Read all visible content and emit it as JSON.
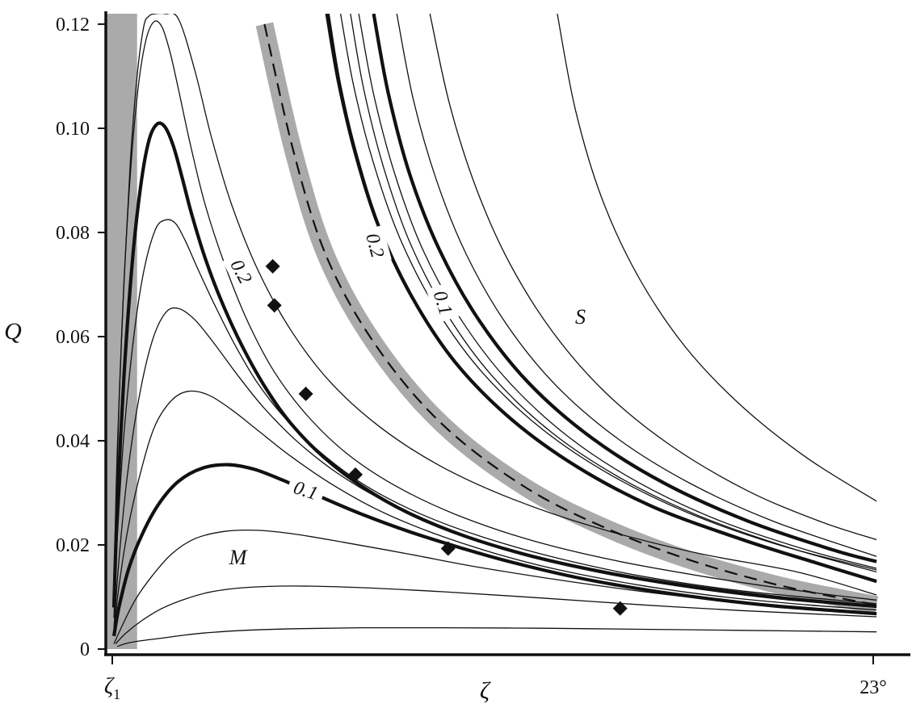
{
  "chart_data": {
    "type": "line",
    "xlabel": "ζ",
    "ylabel": "Q",
    "x_tick_labels": [
      {
        "x": 0,
        "main": "ζ",
        "sub": "1"
      },
      {
        "x": 23,
        "main": "23°",
        "sub": ""
      }
    ],
    "xlim": [
      0,
      23.5
    ],
    "ylim": [
      0,
      0.122
    ],
    "yticks": [
      0,
      0.02,
      0.04,
      0.06,
      0.08,
      0.1,
      0.12
    ],
    "ytick_labels": [
      "0",
      "0.02",
      "0.04",
      "0.06",
      "0.08",
      "0.10",
      "0.12"
    ],
    "grid": false,
    "shaded_band_left": {
      "x_range": [
        -0.2,
        0.75
      ],
      "color": "#aaaaaa"
    },
    "separatrix": {
      "style": "dashed",
      "band_color": "#aaaaaa",
      "x": [
        4.6,
        5.5,
        6.5,
        8,
        10,
        12.5,
        15,
        17.5,
        20,
        22,
        23.1
      ],
      "y": [
        0.12,
        0.095,
        0.075,
        0.058,
        0.043,
        0.031,
        0.023,
        0.017,
        0.0125,
        0.0098,
        0.0085
      ]
    },
    "series": [
      {
        "weight": "thin",
        "x": [
          0.15,
          0.5,
          1.0,
          1.5,
          2.2,
          3.0,
          4.0,
          5.5,
          7.5,
          10,
          13,
          16,
          19,
          23.1
        ],
        "y": [
          0.0005,
          0.0012,
          0.0017,
          0.0021,
          0.0027,
          0.0032,
          0.0036,
          0.0039,
          0.0041,
          0.0041,
          0.004,
          0.0038,
          0.0036,
          0.0033
        ]
      },
      {
        "weight": "thin",
        "x": [
          0.1,
          0.4,
          0.9,
          1.5,
          2.2,
          3.0,
          4.0,
          5.5,
          7.5,
          10,
          13,
          16,
          19,
          23.1
        ],
        "y": [
          0.001,
          0.003,
          0.0055,
          0.0078,
          0.0096,
          0.011,
          0.0118,
          0.0121,
          0.0118,
          0.011,
          0.0098,
          0.0085,
          0.0074,
          0.0062
        ]
      },
      {
        "weight": "thin",
        "x": [
          0.05,
          0.3,
          0.7,
          1.2,
          1.8,
          2.5,
          3.4,
          4.4,
          5.6,
          7,
          9,
          11,
          14,
          17,
          20,
          23.1
        ],
        "y": [
          0.001,
          0.0045,
          0.0095,
          0.014,
          0.0183,
          0.0212,
          0.0226,
          0.0228,
          0.022,
          0.0205,
          0.0182,
          0.0158,
          0.0128,
          0.0103,
          0.0085,
          0.0068
        ]
      },
      {
        "weight": "thick",
        "x": [
          0.05,
          0.2,
          0.5,
          0.9,
          1.4,
          2.0,
          2.7,
          3.5,
          4.3,
          5.2,
          6.2,
          7.5,
          9,
          10.5,
          12,
          14,
          16,
          18,
          20,
          22,
          23.1
        ],
        "y": [
          0.0025,
          0.008,
          0.0155,
          0.022,
          0.0278,
          0.0322,
          0.0347,
          0.0354,
          0.0345,
          0.0323,
          0.0295,
          0.026,
          0.0225,
          0.0195,
          0.0168,
          0.0138,
          0.0115,
          0.0097,
          0.0083,
          0.0073,
          0.0068
        ]
      },
      {
        "weight": "thin",
        "x": [
          0.05,
          0.2,
          0.5,
          0.9,
          1.3,
          1.8,
          2.3,
          2.9,
          3.6,
          4.4,
          5.4,
          6.6,
          8,
          9.6,
          11.5,
          13.5,
          16,
          18.5,
          21,
          23.1
        ],
        "y": [
          0.003,
          0.012,
          0.024,
          0.035,
          0.043,
          0.0478,
          0.0495,
          0.0488,
          0.046,
          0.042,
          0.037,
          0.0318,
          0.0268,
          0.0225,
          0.0185,
          0.0152,
          0.0122,
          0.01,
          0.0085,
          0.0075
        ]
      },
      {
        "weight": "thin",
        "x": [
          0.05,
          0.2,
          0.45,
          0.8,
          1.2,
          1.6,
          2.0,
          2.5,
          3.1,
          3.8,
          4.6,
          5.6,
          6.8,
          8.2,
          10,
          12,
          14.5,
          17,
          20,
          23.1
        ],
        "y": [
          0.004,
          0.017,
          0.033,
          0.048,
          0.059,
          0.0645,
          0.0654,
          0.0632,
          0.0585,
          0.0525,
          0.0462,
          0.0398,
          0.0338,
          0.0285,
          0.0232,
          0.019,
          0.015,
          0.0122,
          0.0097,
          0.008
        ]
      },
      {
        "weight": "thin",
        "x": [
          0.05,
          0.15,
          0.35,
          0.65,
          0.95,
          1.3,
          1.6,
          1.9,
          2.2,
          2.6,
          3.1,
          3.7,
          4.4,
          5.3,
          6.4,
          7.7,
          9.3,
          11.2,
          13.5,
          16,
          19,
          23.1
        ],
        "y": [
          0.006,
          0.021,
          0.041,
          0.06,
          0.0725,
          0.0805,
          0.0824,
          0.0818,
          0.0785,
          0.0728,
          0.066,
          0.0585,
          0.051,
          0.0438,
          0.0372,
          0.0312,
          0.026,
          0.0215,
          0.0174,
          0.014,
          0.0112,
          0.0087
        ]
      },
      {
        "weight": "thick",
        "x": [
          0.05,
          0.15,
          0.35,
          0.6,
          0.85,
          1.1,
          1.35,
          1.6,
          1.85,
          2.1,
          2.4,
          2.8,
          3.3,
          3.9,
          4.6,
          5.4,
          6.4,
          7.6,
          9,
          10.7,
          12.7,
          15,
          17.5,
          20.3,
          23.1
        ],
        "y": [
          0.008,
          0.027,
          0.052,
          0.074,
          0.0885,
          0.0975,
          0.1008,
          0.1002,
          0.0965,
          0.0908,
          0.0835,
          0.0752,
          0.0668,
          0.0585,
          0.0505,
          0.0433,
          0.0368,
          0.031,
          0.026,
          0.0216,
          0.0178,
          0.0146,
          0.012,
          0.0098,
          0.0082
        ]
      },
      {
        "weight": "thin",
        "x": [
          0.05,
          0.12,
          0.28,
          0.5,
          0.75,
          1.0,
          1.25,
          1.5,
          1.75,
          2.0,
          2.35,
          2.8,
          3.4,
          4.1,
          4.9,
          5.9,
          7.1,
          8.6,
          10.4,
          12.6,
          15.2,
          18.2,
          21,
          23.1
        ],
        "y": [
          0.01,
          0.03,
          0.06,
          0.087,
          0.106,
          0.1165,
          0.1204,
          0.1195,
          0.1145,
          0.1075,
          0.0972,
          0.0855,
          0.0738,
          0.0628,
          0.0532,
          0.0448,
          0.0375,
          0.0312,
          0.0258,
          0.021,
          0.017,
          0.0136,
          0.011,
          0.0094
        ]
      },
      {
        "weight": "thin",
        "x": [
          0.05,
          0.15,
          0.35,
          0.55,
          0.75,
          0.95,
          1.1,
          1.3,
          1.6,
          2.0,
          2.5,
          3.0,
          3.6,
          4.4,
          5.4,
          6.6,
          8.1,
          9.9,
          12.1,
          14.7,
          17.7,
          20.7,
          23.1
        ],
        "y": [
          0.012,
          0.038,
          0.07,
          0.094,
          0.11,
          0.1195,
          0.1215,
          0.122,
          0.122,
          0.121,
          0.111,
          0.0982,
          0.0855,
          0.0728,
          0.0612,
          0.0512,
          0.0426,
          0.0352,
          0.0288,
          0.0232,
          0.0184,
          0.0148,
          0.0104
        ]
      },
      {
        "weight": "thin",
        "x": [
          6.45,
          6.8,
          7.3,
          8,
          9,
          10.3,
          12,
          14,
          16.3,
          19,
          21.2,
          23.1
        ],
        "y": [
          0.122,
          0.109,
          0.0955,
          0.0815,
          0.068,
          0.0555,
          0.0445,
          0.0353,
          0.0276,
          0.0213,
          0.0168,
          0.0132
        ]
      },
      {
        "weight": "thin",
        "x": [
          6.55,
          6.9,
          7.4,
          8.1,
          9.1,
          10.4,
          12.1,
          14.1,
          16.4,
          19.1,
          21.3,
          23.1
        ],
        "y": [
          0.122,
          0.1085,
          0.095,
          0.081,
          0.0675,
          0.055,
          0.044,
          0.0348,
          0.0271,
          0.0208,
          0.0164,
          0.0128
        ]
      },
      {
        "weight": "thick",
        "x": [
          6.5,
          6.85,
          7.35,
          8.05,
          9.05,
          10.35,
          12.05,
          14.05,
          16.35,
          19.05,
          21.25,
          23.1
        ],
        "y": [
          0.122,
          0.1088,
          0.0952,
          0.0812,
          0.0677,
          0.0552,
          0.0442,
          0.035,
          0.0273,
          0.021,
          0.0166,
          0.013
        ]
      },
      {
        "weight": "thin",
        "x": [
          6.9,
          7.3,
          7.9,
          8.7,
          9.8,
          11.2,
          13,
          15.1,
          17.5,
          20.2,
          23.1
        ],
        "y": [
          0.122,
          0.108,
          0.0932,
          0.0788,
          0.0652,
          0.053,
          0.0422,
          0.0333,
          0.0259,
          0.0199,
          0.0152
        ]
      },
      {
        "weight": "thin",
        "x": [
          7.2,
          7.6,
          8.2,
          9.0,
          10.1,
          11.5,
          13.3,
          15.4,
          17.8,
          20.5,
          23.1
        ],
        "y": [
          0.122,
          0.1075,
          0.0925,
          0.078,
          0.0645,
          0.0523,
          0.0415,
          0.0327,
          0.0254,
          0.0194,
          0.0148
        ]
      },
      {
        "weight": "thin",
        "x": [
          7.45,
          7.9,
          8.55,
          9.4,
          10.55,
          12,
          13.8,
          15.9,
          18.3,
          21,
          23.1
        ],
        "y": [
          0.122,
          0.1065,
          0.091,
          0.0765,
          0.0632,
          0.0512,
          0.0407,
          0.032,
          0.0248,
          0.019,
          0.0155
        ]
      },
      {
        "weight": "thick",
        "x": [
          7.9,
          8.35,
          9.0,
          9.9,
          11.1,
          12.6,
          14.5,
          16.7,
          19.2,
          21.8,
          23.1
        ],
        "y": [
          0.122,
          0.1065,
          0.091,
          0.0765,
          0.063,
          0.051,
          0.0405,
          0.0318,
          0.0246,
          0.019,
          0.0168
        ]
      },
      {
        "weight": "thin",
        "x": [
          8.6,
          9.1,
          9.8,
          10.7,
          11.9,
          13.4,
          15.3,
          17.5,
          20,
          23.1
        ],
        "y": [
          0.122,
          0.1055,
          0.09,
          0.0758,
          0.0625,
          0.0507,
          0.0403,
          0.0317,
          0.0245,
          0.0178
        ]
      },
      {
        "weight": "thin",
        "x": [
          9.6,
          10.2,
          11.0,
          12.0,
          13.3,
          14.9,
          16.9,
          19.2,
          21.4,
          23.1
        ],
        "y": [
          0.122,
          0.1045,
          0.0885,
          0.0742,
          0.061,
          0.0493,
          0.039,
          0.0304,
          0.0245,
          0.021
        ]
      },
      {
        "weight": "thin",
        "x": [
          13.45,
          14.0,
          14.8,
          15.9,
          17.3,
          19,
          21,
          23.1
        ],
        "y": [
          0.122,
          0.1035,
          0.0865,
          0.0715,
          0.0582,
          0.0468,
          0.0367,
          0.0284
        ]
      }
    ],
    "markers": {
      "shape": "diamond",
      "points": [
        [
          4.85,
          0.0735
        ],
        [
          4.9,
          0.066
        ],
        [
          5.85,
          0.049
        ],
        [
          7.35,
          0.0335
        ],
        [
          10.15,
          0.0193
        ],
        [
          15.35,
          0.0078
        ]
      ]
    },
    "contour_labels": [
      {
        "text": "0.2",
        "x": 3.9,
        "y": 0.0725,
        "rotate": 62
      },
      {
        "text": "0.1",
        "x": 5.85,
        "y": 0.0305,
        "rotate": 18
      },
      {
        "text": "0.2",
        "x": 7.95,
        "y": 0.0775,
        "rotate": 75
      },
      {
        "text": "0.1",
        "x": 10.0,
        "y": 0.0665,
        "rotate": 72
      }
    ],
    "region_labels": [
      {
        "text": "S",
        "x": 14.15,
        "y": 0.0625
      },
      {
        "text": "M",
        "x": 3.8,
        "y": 0.0163
      }
    ]
  }
}
